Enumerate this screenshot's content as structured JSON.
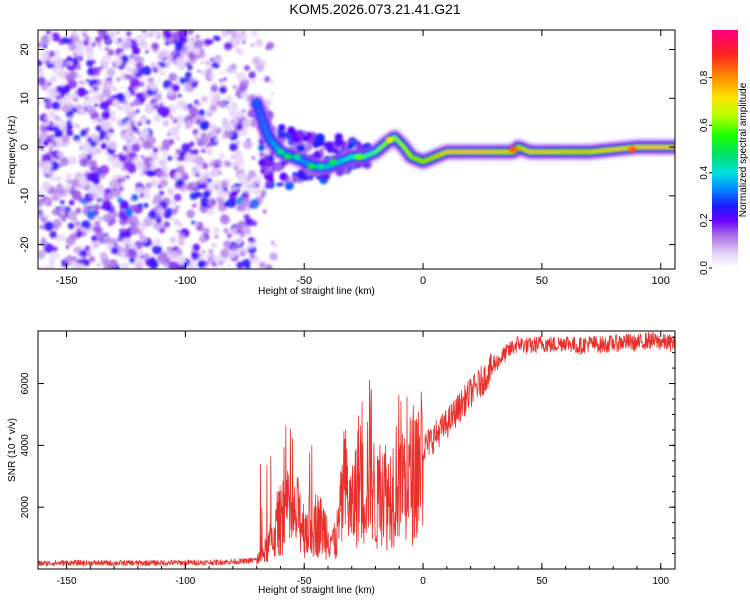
{
  "title": "KOM5.2026.073.21.41.G21",
  "chart_data": [
    {
      "type": "heatmap",
      "name": "spectrogram",
      "xlabel": "Height of straight line (km)",
      "ylabel": "Frequency (Hz)",
      "xlim": [
        -162,
        106
      ],
      "ylim": [
        -25,
        24
      ],
      "xticks": [
        -150,
        -100,
        -50,
        0,
        50,
        100
      ],
      "xtick_labels": [
        "-150",
        "-100",
        "-50",
        "0",
        "50",
        "100"
      ],
      "yticks": [
        -20,
        -10,
        0,
        10,
        20
      ],
      "ytick_labels": [
        "-20",
        "-10",
        "0",
        "10",
        "20"
      ],
      "colorbar": {
        "label": "Normalized spectral amplitude",
        "range": [
          0,
          1
        ],
        "ticks": [
          0.0,
          0.2,
          0.4,
          0.6,
          0.8
        ],
        "tick_labels": [
          "0.0",
          "0.2",
          "0.4",
          "0.6",
          "0.8"
        ]
      },
      "ridge": {
        "description_free_track": true,
        "x": [
          -70,
          -65,
          -60,
          -55,
          -50,
          -45,
          -40,
          -35,
          -30,
          -25,
          -20,
          -15,
          -12,
          -8,
          -5,
          0,
          5,
          10,
          20,
          30,
          38,
          40,
          45,
          50,
          60,
          70,
          80,
          90,
          100,
          106
        ],
        "freq": [
          9,
          2,
          -1,
          -2,
          -3,
          -4,
          -4,
          -3,
          -2,
          -2,
          -1,
          1,
          2,
          0,
          -2,
          -3,
          -2,
          -1,
          -1,
          -1,
          -1,
          0,
          -1,
          -1,
          -1,
          -1,
          -0.5,
          0,
          0,
          0
        ],
        "amplitude": [
          0.3,
          0.35,
          0.45,
          0.4,
          0.4,
          0.45,
          0.5,
          0.5,
          0.55,
          0.6,
          0.6,
          0.7,
          0.65,
          0.7,
          0.75,
          0.8,
          0.85,
          0.95,
          1.0,
          0.95,
          0.9,
          0.85,
          0.95,
          0.95,
          0.9,
          0.9,
          0.95,
          0.95,
          1.0,
          0.95
        ]
      }
    },
    {
      "type": "line",
      "name": "snr",
      "xlabel": "Height of straight line (km)",
      "ylabel": "SNR (10 * v/v)",
      "xlim": [
        -162,
        106
      ],
      "ylim": [
        0,
        7700
      ],
      "xticks": [
        -150,
        -100,
        -50,
        0,
        50,
        100
      ],
      "xtick_labels": [
        "-150",
        "-100",
        "-50",
        "0",
        "50",
        "100"
      ],
      "yticks": [
        2000,
        4000,
        6000
      ],
      "ytick_labels": [
        "2000",
        "4000",
        "6000"
      ],
      "color": "#e8302a",
      "series": [
        {
          "name": "SNR",
          "x": [
            -162,
            -150,
            -130,
            -110,
            -90,
            -75,
            -70,
            -66,
            -62,
            -58,
            -55,
            -52,
            -50,
            -45,
            -40,
            -37,
            -35,
            -33,
            -30,
            -27,
            -25,
            -22,
            -20,
            -17,
            -15,
            -12,
            -10,
            -7,
            -5,
            -2,
            0,
            5,
            10,
            15,
            20,
            25,
            30,
            35,
            40,
            45,
            50,
            55,
            60,
            65,
            70,
            75,
            80,
            85,
            90,
            95,
            100,
            106
          ],
          "y": [
            180,
            200,
            190,
            200,
            210,
            250,
            300,
            600,
            1200,
            2000,
            1500,
            1800,
            1300,
            1500,
            1200,
            800,
            1600,
            2800,
            1800,
            3000,
            2400,
            3800,
            1800,
            3000,
            2200,
            2800,
            3400,
            2600,
            3000,
            3400,
            3900,
            4300,
            4700,
            5200,
            5700,
            6100,
            6600,
            7000,
            7300,
            7200,
            7300,
            7250,
            7350,
            7200,
            7300,
            7250,
            7300,
            7350,
            7300,
            7400,
            7350,
            7300
          ]
        }
      ]
    }
  ]
}
